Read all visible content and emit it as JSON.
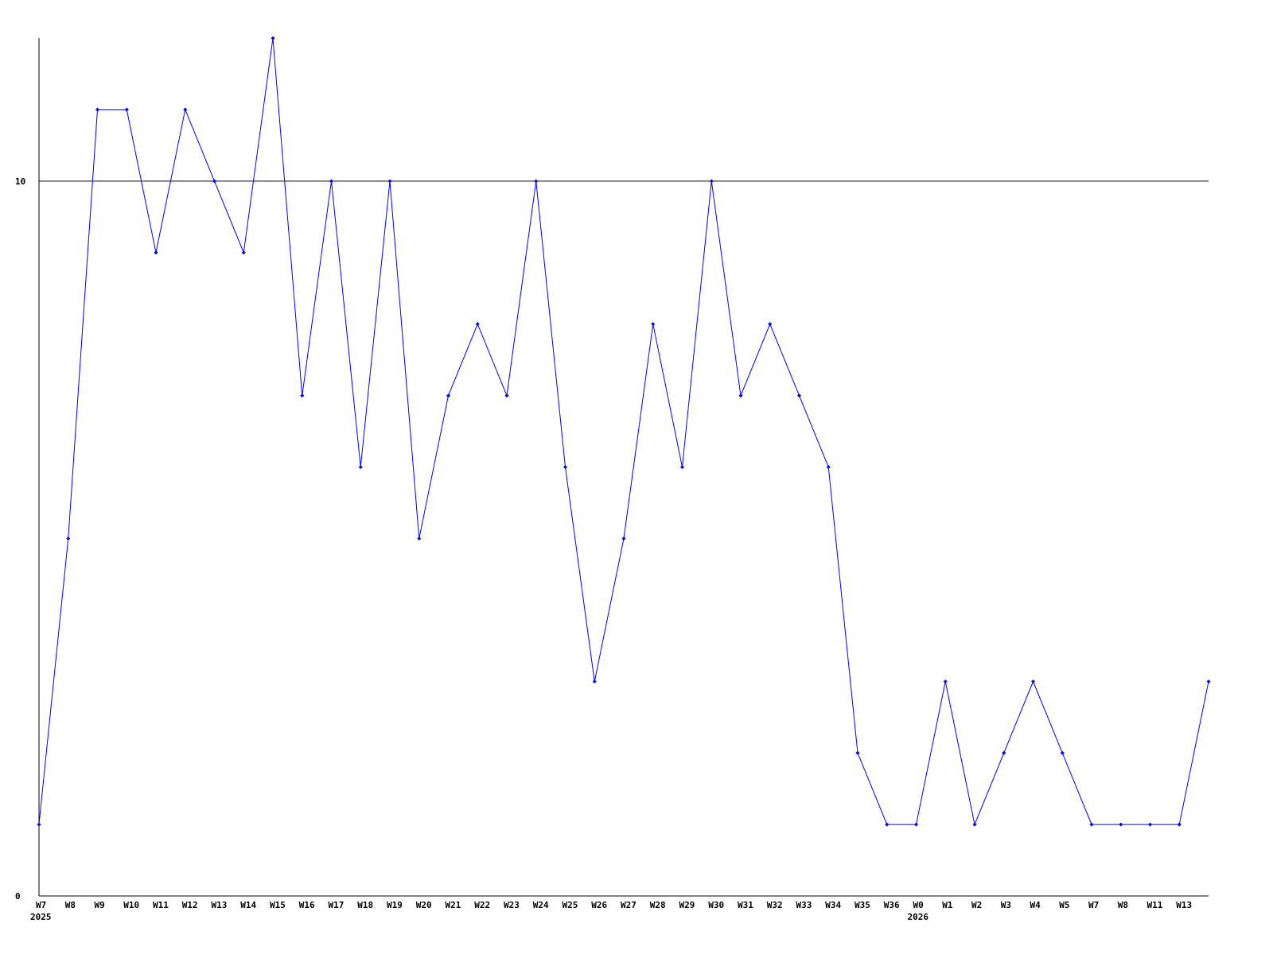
{
  "chart_data": {
    "type": "line",
    "categories": [
      "W7",
      "W8",
      "W9",
      "W10",
      "W11",
      "W12",
      "W13",
      "W14",
      "W15",
      "W16",
      "W17",
      "W18",
      "W19",
      "W20",
      "W21",
      "W22",
      "W23",
      "W24",
      "W25",
      "W26",
      "W27",
      "W28",
      "W29",
      "W30",
      "W31",
      "W32",
      "W33",
      "W34",
      "W35",
      "W36",
      "W0",
      "W1",
      "W2",
      "W3",
      "W4",
      "W5",
      "W7",
      "W8",
      "W11",
      "W13",
      ""
    ],
    "year_labels": [
      {
        "index": 0,
        "label": "2025"
      },
      {
        "index": 30,
        "label": "2026"
      }
    ],
    "values": [
      1,
      5,
      11,
      11,
      9,
      11,
      10,
      9,
      12,
      7,
      10,
      6,
      10,
      5,
      7,
      8,
      7,
      10,
      6,
      3,
      5,
      8,
      6,
      10,
      7,
      8,
      7,
      6,
      2,
      1,
      1,
      3,
      1,
      2,
      3,
      2,
      1,
      1,
      1,
      1,
      3
    ],
    "y_ticks": [
      0,
      10
    ],
    "ylim": [
      0,
      12
    ],
    "reference_line": 10,
    "grid": false,
    "line_color": "#0000ff",
    "title": "",
    "xlabel": "",
    "ylabel": ""
  }
}
